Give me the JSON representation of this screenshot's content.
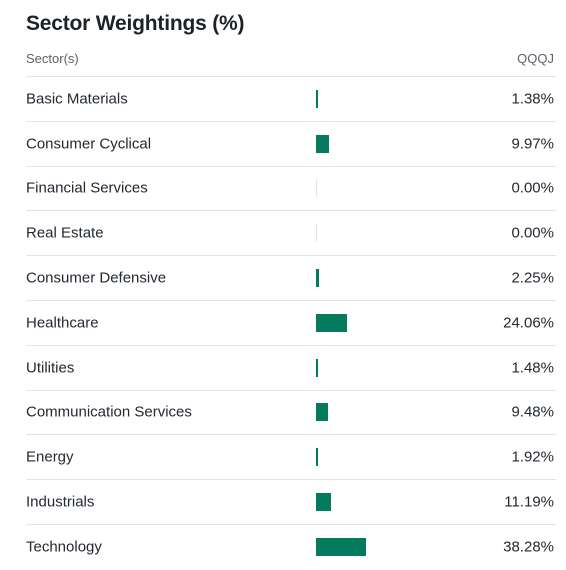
{
  "title": "Sector Weightings (%)",
  "table": {
    "header": {
      "sector_label": "Sector(s)",
      "fund_label": "QQQJ"
    },
    "bar_color": "#047a5f",
    "bar_scale_max_percent": 100,
    "rows": [
      {
        "sector": "Basic Materials",
        "value_text": "1.38%",
        "value": 1.38
      },
      {
        "sector": "Consumer Cyclical",
        "value_text": "9.97%",
        "value": 9.97
      },
      {
        "sector": "Financial Services",
        "value_text": "0.00%",
        "value": 0.0
      },
      {
        "sector": "Real Estate",
        "value_text": "0.00%",
        "value": 0.0
      },
      {
        "sector": "Consumer Defensive",
        "value_text": "2.25%",
        "value": 2.25
      },
      {
        "sector": "Healthcare",
        "value_text": "24.06%",
        "value": 24.06
      },
      {
        "sector": "Utilities",
        "value_text": "1.48%",
        "value": 1.48
      },
      {
        "sector": "Communication Services",
        "value_text": "9.48%",
        "value": 9.48
      },
      {
        "sector": "Energy",
        "value_text": "1.92%",
        "value": 1.92
      },
      {
        "sector": "Industrials",
        "value_text": "11.19%",
        "value": 11.19
      },
      {
        "sector": "Technology",
        "value_text": "38.28%",
        "value": 38.28
      }
    ]
  }
}
